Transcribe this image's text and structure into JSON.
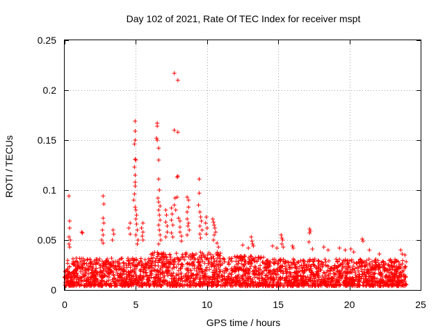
{
  "chart_data": {
    "type": "scatter",
    "title": "Day 102 of 2021, Rate Of TEC Index for receiver mspt",
    "xlabel": "GPS time / hours",
    "ylabel": "ROTI / TECUs",
    "xlim": [
      0,
      25
    ],
    "ylim": [
      0,
      0.25
    ],
    "x_ticks": [
      0,
      5,
      10,
      15,
      20,
      25
    ],
    "y_ticks": [
      0,
      0.05,
      0.1,
      0.15,
      0.2,
      0.25
    ],
    "x_tick_labels": [
      "0",
      "5",
      "10",
      "15",
      "20",
      "25"
    ],
    "y_tick_labels": [
      "0",
      "0.05",
      "0.1",
      "0.15",
      "0.2",
      "0.25"
    ],
    "grid": true,
    "marker": "+",
    "color": "#ff0000",
    "series": [
      {
        "name": "ROTI",
        "points": [
          [
            0.3,
            0.094
          ],
          [
            0.35,
            0.069
          ],
          [
            0.35,
            0.062
          ],
          [
            0.3,
            0.053
          ],
          [
            0.4,
            0.05
          ],
          [
            0.3,
            0.046
          ],
          [
            0.35,
            0.043
          ],
          [
            1.2,
            0.058
          ],
          [
            1.25,
            0.057
          ],
          [
            2.7,
            0.094
          ],
          [
            2.75,
            0.086
          ],
          [
            2.7,
            0.072
          ],
          [
            2.75,
            0.067
          ],
          [
            2.65,
            0.06
          ],
          [
            2.7,
            0.055
          ],
          [
            2.6,
            0.05
          ],
          [
            2.7,
            0.047
          ],
          [
            3.4,
            0.06
          ],
          [
            3.45,
            0.056
          ],
          [
            3.35,
            0.05
          ],
          [
            4.6,
            0.067
          ],
          [
            4.5,
            0.062
          ],
          [
            4.6,
            0.056
          ],
          [
            4.95,
            0.169
          ],
          [
            4.95,
            0.159
          ],
          [
            4.95,
            0.15
          ],
          [
            4.9,
            0.146
          ],
          [
            4.95,
            0.131
          ],
          [
            5.0,
            0.13
          ],
          [
            4.9,
            0.123
          ],
          [
            4.95,
            0.115
          ],
          [
            4.95,
            0.108
          ],
          [
            4.95,
            0.104
          ],
          [
            4.9,
            0.096
          ],
          [
            4.85,
            0.09
          ],
          [
            4.95,
            0.083
          ],
          [
            5.0,
            0.08
          ],
          [
            5.05,
            0.075
          ],
          [
            5.0,
            0.071
          ],
          [
            5.05,
            0.066
          ],
          [
            5.1,
            0.06
          ],
          [
            5.0,
            0.055
          ],
          [
            5.15,
            0.05
          ],
          [
            5.1,
            0.046
          ],
          [
            5.5,
            0.067
          ],
          [
            5.4,
            0.062
          ],
          [
            5.5,
            0.058
          ],
          [
            5.45,
            0.054
          ],
          [
            5.5,
            0.05
          ],
          [
            6.5,
            0.167
          ],
          [
            6.5,
            0.164
          ],
          [
            6.45,
            0.152
          ],
          [
            6.5,
            0.15
          ],
          [
            6.6,
            0.142
          ],
          [
            6.6,
            0.13
          ],
          [
            6.6,
            0.111
          ],
          [
            6.65,
            0.1
          ],
          [
            6.55,
            0.092
          ],
          [
            6.6,
            0.088
          ],
          [
            6.7,
            0.084
          ],
          [
            6.6,
            0.08
          ],
          [
            6.65,
            0.075
          ],
          [
            6.7,
            0.07
          ],
          [
            6.6,
            0.065
          ],
          [
            6.65,
            0.06
          ],
          [
            6.7,
            0.055
          ],
          [
            6.75,
            0.05
          ],
          [
            6.6,
            0.046
          ],
          [
            7.1,
            0.08
          ],
          [
            7.15,
            0.075
          ],
          [
            7.1,
            0.068
          ],
          [
            7.2,
            0.064
          ],
          [
            7.2,
            0.058
          ],
          [
            7.1,
            0.053
          ],
          [
            7.5,
            0.082
          ],
          [
            7.55,
            0.076
          ],
          [
            7.5,
            0.07
          ],
          [
            7.6,
            0.065
          ],
          [
            7.5,
            0.057
          ],
          [
            7.6,
            0.053
          ],
          [
            7.7,
            0.217
          ],
          [
            7.7,
            0.16
          ],
          [
            7.75,
            0.092
          ],
          [
            7.7,
            0.085
          ],
          [
            7.8,
            0.08
          ],
          [
            7.95,
            0.21
          ],
          [
            7.95,
            0.158
          ],
          [
            7.95,
            0.114
          ],
          [
            7.9,
            0.113
          ],
          [
            7.9,
            0.093
          ],
          [
            8.0,
            0.072
          ],
          [
            8.1,
            0.069
          ],
          [
            8.1,
            0.063
          ],
          [
            8.1,
            0.058
          ],
          [
            8.2,
            0.054
          ],
          [
            8.2,
            0.049
          ],
          [
            8.6,
            0.093
          ],
          [
            8.7,
            0.09
          ],
          [
            8.7,
            0.083
          ],
          [
            8.6,
            0.078
          ],
          [
            8.6,
            0.071
          ],
          [
            8.7,
            0.067
          ],
          [
            8.65,
            0.064
          ],
          [
            8.75,
            0.06
          ],
          [
            8.6,
            0.055
          ],
          [
            9.45,
            0.111
          ],
          [
            9.45,
            0.097
          ],
          [
            9.4,
            0.085
          ],
          [
            9.5,
            0.078
          ],
          [
            9.55,
            0.073
          ],
          [
            9.6,
            0.069
          ],
          [
            9.5,
            0.064
          ],
          [
            9.65,
            0.06
          ],
          [
            9.5,
            0.056
          ],
          [
            9.55,
            0.052
          ],
          [
            9.95,
            0.073
          ],
          [
            9.9,
            0.067
          ],
          [
            10.0,
            0.062
          ],
          [
            9.95,
            0.056
          ],
          [
            10.4,
            0.071
          ],
          [
            10.45,
            0.068
          ],
          [
            10.5,
            0.065
          ],
          [
            10.55,
            0.062
          ],
          [
            10.6,
            0.058
          ],
          [
            10.5,
            0.055
          ],
          [
            10.45,
            0.05
          ],
          [
            10.7,
            0.047
          ],
          [
            10.8,
            0.043
          ],
          [
            12.5,
            0.045
          ],
          [
            12.9,
            0.042
          ],
          [
            13.1,
            0.053
          ],
          [
            13.15,
            0.049
          ],
          [
            13.2,
            0.046
          ],
          [
            13.25,
            0.044
          ],
          [
            14.6,
            0.044
          ],
          [
            14.9,
            0.042
          ],
          [
            15.2,
            0.055
          ],
          [
            15.25,
            0.052
          ],
          [
            15.3,
            0.05
          ],
          [
            15.25,
            0.046
          ],
          [
            15.35,
            0.043
          ],
          [
            16.0,
            0.044
          ],
          [
            16.05,
            0.042
          ],
          [
            17.2,
            0.061
          ],
          [
            17.25,
            0.059
          ],
          [
            17.2,
            0.057
          ],
          [
            17.15,
            0.048
          ],
          [
            17.4,
            0.041
          ],
          [
            18.2,
            0.043
          ],
          [
            18.5,
            0.04
          ],
          [
            19.3,
            0.042
          ],
          [
            19.7,
            0.04
          ],
          [
            20.1,
            0.041
          ],
          [
            20.3,
            0.038
          ],
          [
            20.9,
            0.051
          ],
          [
            20.95,
            0.049
          ],
          [
            21.4,
            0.04
          ],
          [
            22.1,
            0.036
          ],
          [
            23.6,
            0.04
          ],
          [
            23.7,
            0.036
          ],
          [
            23.9,
            0.035
          ]
        ]
      }
    ]
  }
}
